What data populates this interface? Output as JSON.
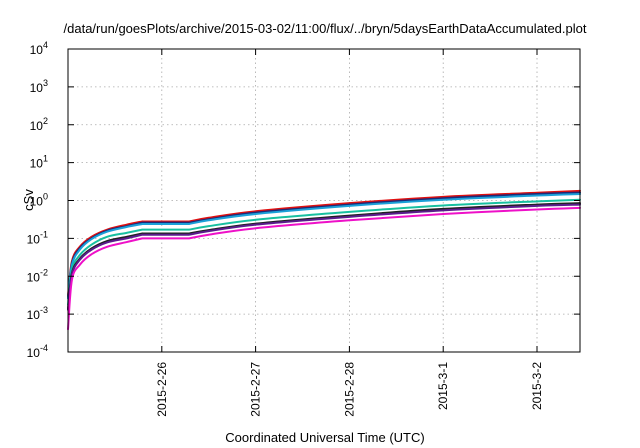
{
  "chart_data": {
    "type": "line",
    "title": "/data/run/goesPlots/archive/2015-03-02/11:00/flux/../bryn/5daysEarthDataAccumulated.plot",
    "xlabel": "Coordinated Universal Time (UTC)",
    "ylabel": "cSv",
    "y_scale": "log",
    "ylim_exp": [
      -4,
      4
    ],
    "y_ticks": [
      {
        "base": "10",
        "exp": "-4",
        "e": -4
      },
      {
        "base": "10",
        "exp": "-3",
        "e": -3
      },
      {
        "base": "10",
        "exp": "-2",
        "e": -2
      },
      {
        "base": "10",
        "exp": "-1",
        "e": -1
      },
      {
        "base": "10",
        "exp": "0",
        "e": 0
      },
      {
        "base": "10",
        "exp": "1",
        "e": 1
      },
      {
        "base": "10",
        "exp": "2",
        "e": 2
      },
      {
        "base": "10",
        "exp": "3",
        "e": 3
      },
      {
        "base": "10",
        "exp": "4",
        "e": 4
      }
    ],
    "xlim": [
      "2015-02-25T00:00",
      "2015-03-02T11:00"
    ],
    "x_ticks": [
      {
        "label": "2015-2-26",
        "t": "2015-02-26T00:00"
      },
      {
        "label": "2015-2-27",
        "t": "2015-02-27T00:00"
      },
      {
        "label": "2015-2-28",
        "t": "2015-02-28T00:00"
      },
      {
        "label": "2015-3-1",
        "t": "2015-03-01T00:00"
      },
      {
        "label": "2015-3-2",
        "t": "2015-03-02T00:00"
      }
    ],
    "grid": true,
    "series": [
      {
        "color": "#e01010",
        "x": [
          "2015-02-25T00:00",
          "2015-02-25T01:00",
          "2015-02-25T03:00",
          "2015-02-25T06:00",
          "2015-02-25T10:00",
          "2015-02-25T15:00",
          "2015-02-25T19:00",
          "2015-02-26T07:00",
          "2015-02-26T12:00",
          "2015-02-27T00:00",
          "2015-02-28T00:00",
          "2015-03-01T00:00",
          "2015-03-02T00:00",
          "2015-03-02T11:00"
        ],
        "values": [
          0.003,
          0.025,
          0.06,
          0.11,
          0.17,
          0.23,
          0.28,
          0.28,
          0.35,
          0.52,
          0.85,
          1.25,
          1.6,
          1.8
        ]
      },
      {
        "color": "#1e2a78",
        "x": [
          "2015-02-25T00:00",
          "2015-02-25T01:00",
          "2015-02-25T03:00",
          "2015-02-25T06:00",
          "2015-02-25T10:00",
          "2015-02-25T15:00",
          "2015-02-25T19:00",
          "2015-02-26T07:00",
          "2015-02-26T12:00",
          "2015-02-27T00:00",
          "2015-02-28T00:00",
          "2015-03-01T00:00",
          "2015-03-02T00:00",
          "2015-03-02T11:00"
        ],
        "values": [
          0.0028,
          0.022,
          0.055,
          0.1,
          0.16,
          0.21,
          0.26,
          0.26,
          0.32,
          0.48,
          0.78,
          1.15,
          1.48,
          1.62
        ]
      },
      {
        "color": "#1aa0d8",
        "x": [
          "2015-02-25T00:00",
          "2015-02-25T01:00",
          "2015-02-25T03:00",
          "2015-02-25T06:00",
          "2015-02-25T10:00",
          "2015-02-25T15:00",
          "2015-02-25T19:00",
          "2015-02-26T07:00",
          "2015-02-26T12:00",
          "2015-02-27T00:00",
          "2015-02-28T00:00",
          "2015-03-01T00:00",
          "2015-03-02T00:00",
          "2015-03-02T11:00"
        ],
        "values": [
          0.0026,
          0.02,
          0.05,
          0.095,
          0.15,
          0.2,
          0.24,
          0.24,
          0.3,
          0.44,
          0.72,
          1.05,
          1.35,
          1.48
        ]
      },
      {
        "color": "#18c0a0",
        "x": [
          "2015-02-25T00:00",
          "2015-02-25T01:00",
          "2015-02-25T03:00",
          "2015-02-25T06:00",
          "2015-02-25T10:00",
          "2015-02-25T15:00",
          "2015-02-25T19:00",
          "2015-02-26T07:00",
          "2015-02-26T12:00",
          "2015-02-27T00:00",
          "2015-02-28T00:00",
          "2015-03-01T00:00",
          "2015-03-02T00:00",
          "2015-03-02T11:00"
        ],
        "values": [
          0.0018,
          0.015,
          0.036,
          0.068,
          0.11,
          0.14,
          0.17,
          0.17,
          0.21,
          0.31,
          0.5,
          0.74,
          0.95,
          1.05
        ]
      },
      {
        "color": "#202020",
        "x": [
          "2015-02-25T00:00",
          "2015-02-25T01:00",
          "2015-02-25T03:00",
          "2015-02-25T06:00",
          "2015-02-25T10:00",
          "2015-02-25T15:00",
          "2015-02-25T19:00",
          "2015-02-26T07:00",
          "2015-02-26T12:00",
          "2015-02-27T00:00",
          "2015-02-28T00:00",
          "2015-03-01T00:00",
          "2015-03-02T00:00",
          "2015-03-02T11:00"
        ],
        "values": [
          0.0014,
          0.012,
          0.029,
          0.054,
          0.085,
          0.11,
          0.135,
          0.135,
          0.165,
          0.245,
          0.4,
          0.6,
          0.78,
          0.85
        ]
      },
      {
        "color": "#5a1c8c",
        "x": [
          "2015-02-25T00:00",
          "2015-02-25T01:00",
          "2015-02-25T03:00",
          "2015-02-25T06:00",
          "2015-02-25T10:00",
          "2015-02-25T15:00",
          "2015-02-25T19:00",
          "2015-02-26T07:00",
          "2015-02-26T12:00",
          "2015-02-27T00:00",
          "2015-02-28T00:00",
          "2015-03-01T00:00",
          "2015-03-02T00:00",
          "2015-03-02T11:00"
        ],
        "values": [
          0.0013,
          0.011,
          0.027,
          0.05,
          0.078,
          0.1,
          0.125,
          0.125,
          0.155,
          0.23,
          0.37,
          0.55,
          0.72,
          0.78
        ]
      },
      {
        "color": "#ee10c8",
        "x": [
          "2015-02-25T00:00",
          "2015-02-25T01:00",
          "2015-02-25T03:00",
          "2015-02-25T06:00",
          "2015-02-25T10:00",
          "2015-02-25T15:00",
          "2015-02-25T19:00",
          "2015-02-26T07:00",
          "2015-02-26T12:00",
          "2015-02-27T00:00",
          "2015-02-28T00:00",
          "2015-03-01T00:00",
          "2015-03-02T00:00",
          "2015-03-02T11:00"
        ],
        "values": [
          0.0004,
          0.008,
          0.02,
          0.038,
          0.06,
          0.08,
          0.1,
          0.1,
          0.125,
          0.185,
          0.3,
          0.44,
          0.58,
          0.64
        ]
      }
    ]
  }
}
